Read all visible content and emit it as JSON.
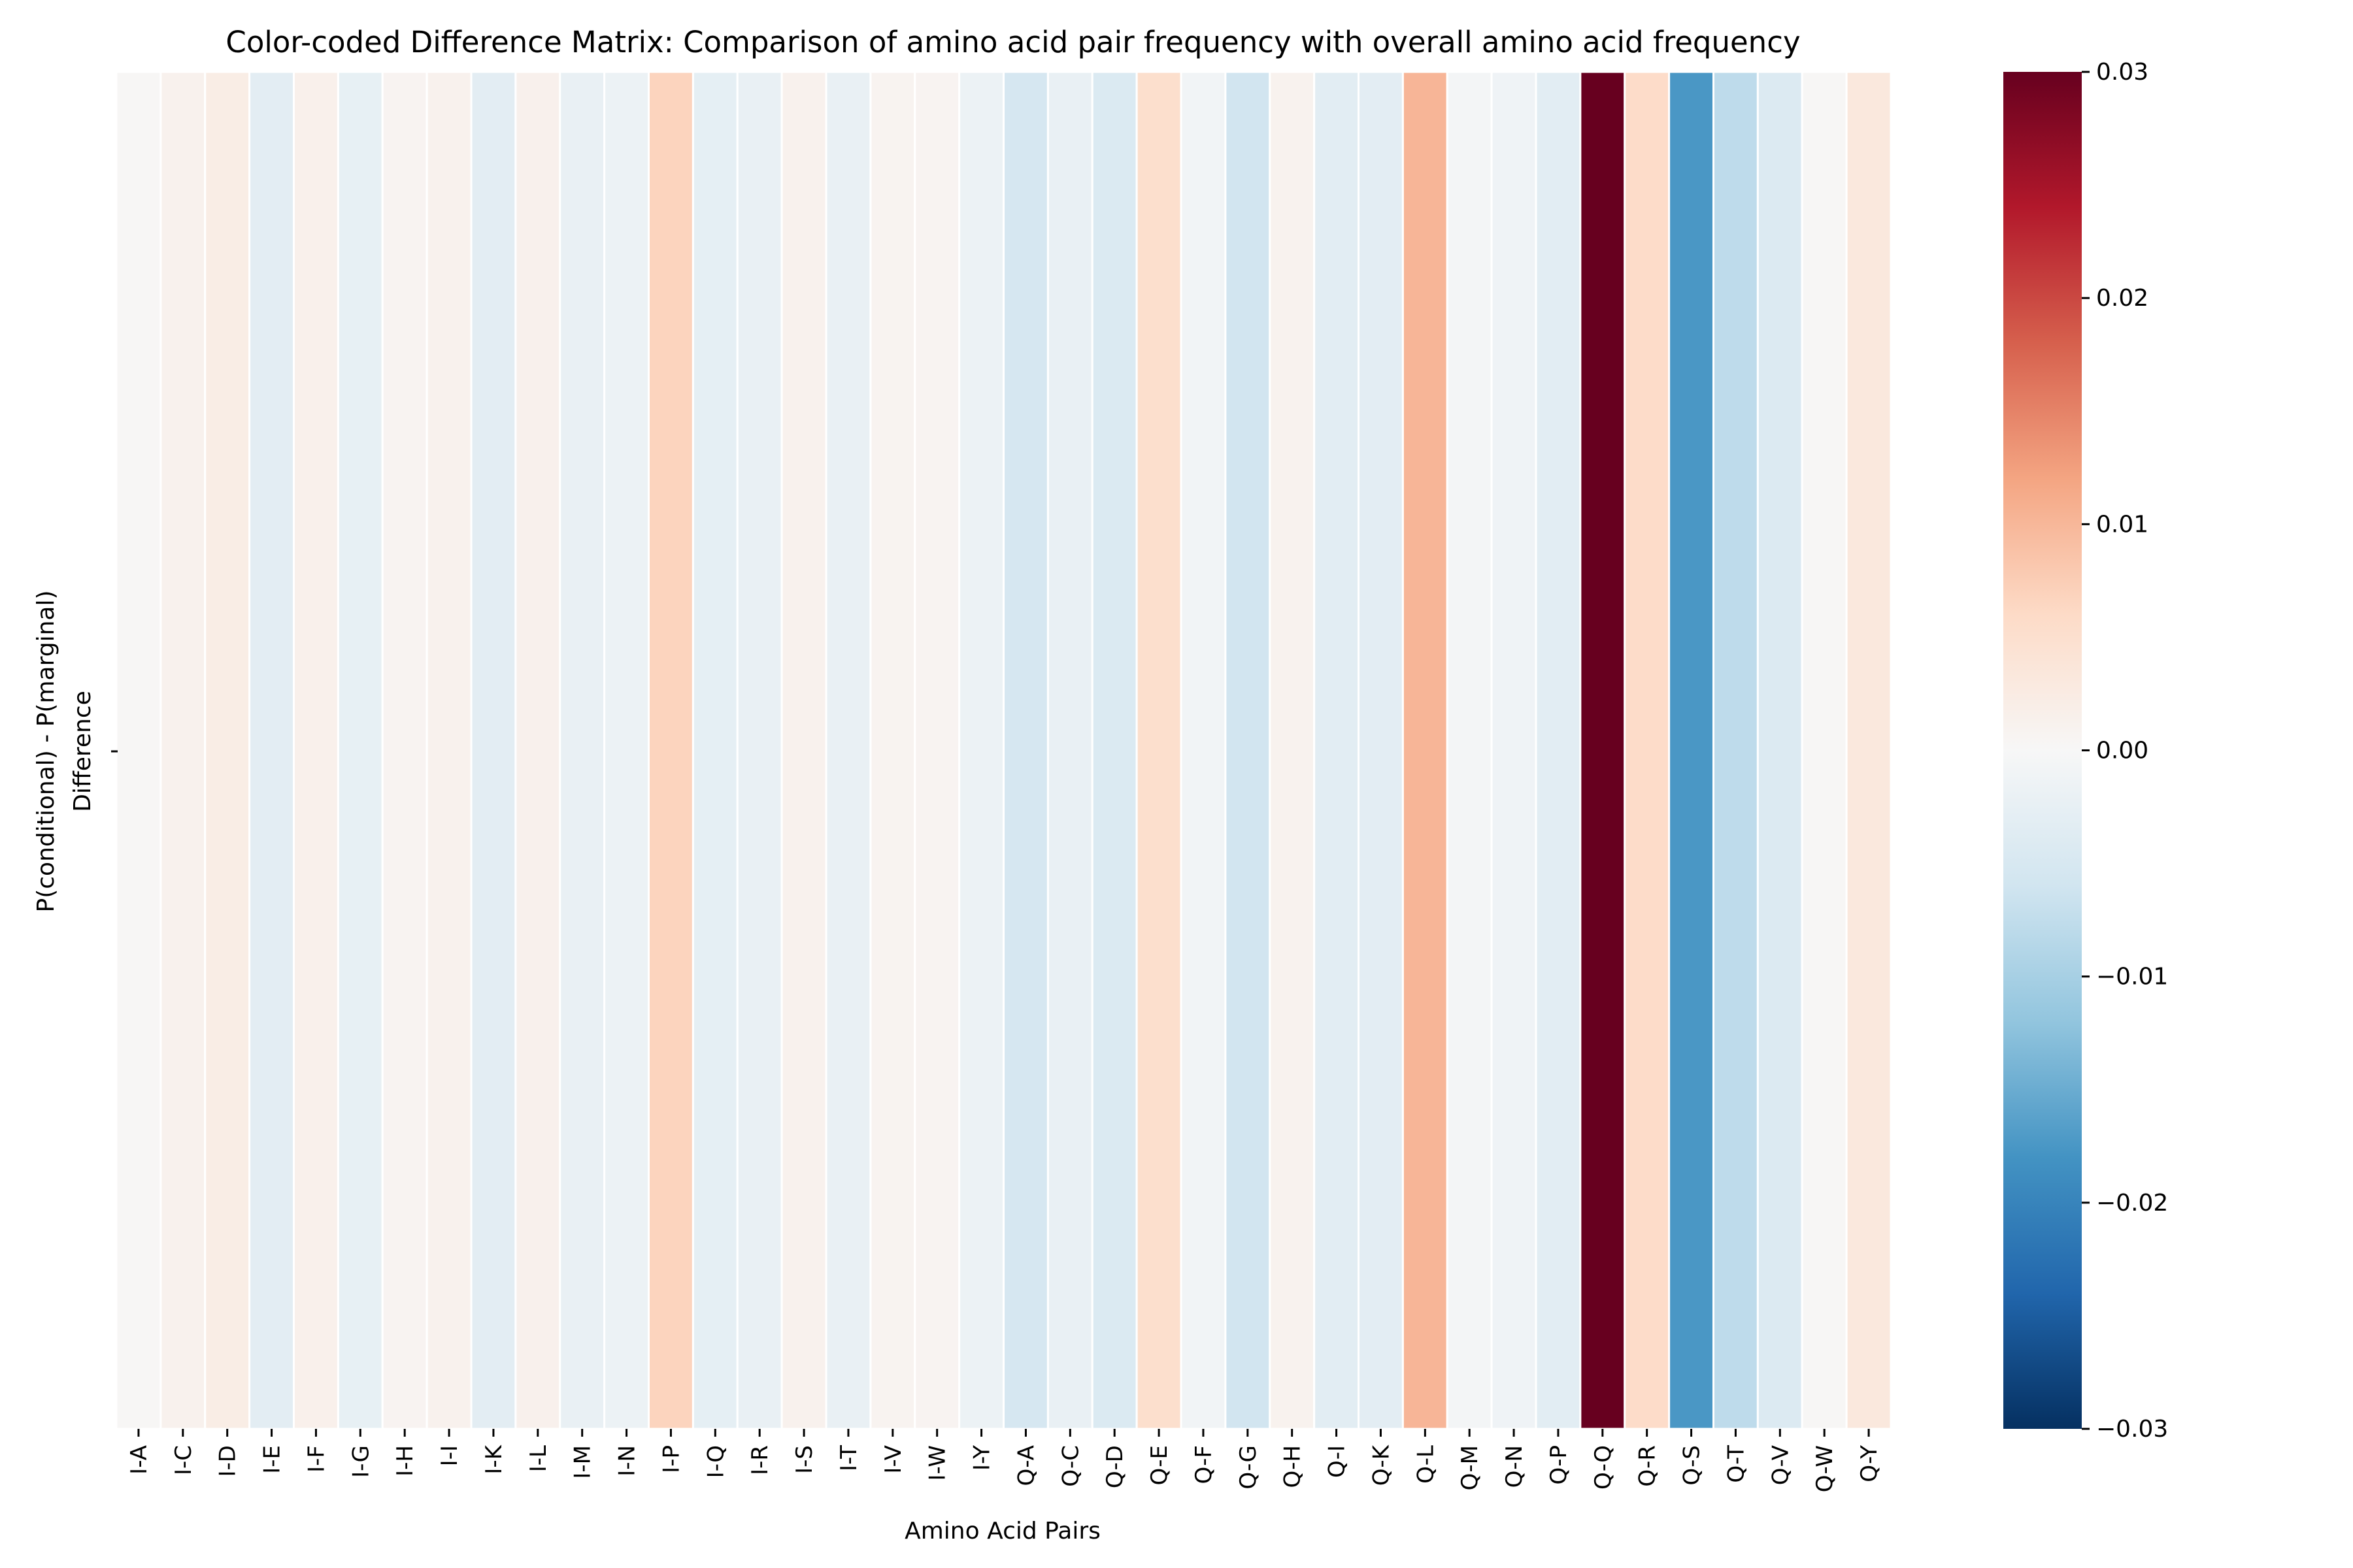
{
  "chart_data": {
    "type": "heatmap",
    "title": "Color-coded Difference Matrix: Comparison of amino acid pair frequency with overall amino acid frequency",
    "xlabel": "Amino Acid Pairs",
    "ylabel_lines": [
      "P(conditional) - P(marginal)",
      "Difference"
    ],
    "rows": [
      ""
    ],
    "categories": [
      "I-A",
      "I-C",
      "I-D",
      "I-E",
      "I-F",
      "I-G",
      "I-H",
      "I-I",
      "I-K",
      "I-L",
      "I-M",
      "I-N",
      "I-P",
      "I-Q",
      "I-R",
      "I-S",
      "I-T",
      "I-V",
      "I-W",
      "I-Y",
      "Q-A",
      "Q-C",
      "Q-D",
      "Q-E",
      "Q-F",
      "Q-G",
      "Q-H",
      "Q-I",
      "Q-K",
      "Q-L",
      "Q-M",
      "Q-N",
      "Q-P",
      "Q-Q",
      "Q-R",
      "Q-S",
      "Q-T",
      "Q-V",
      "Q-W",
      "Q-Y"
    ],
    "values": [
      0.0003,
      0.0013,
      0.0022,
      -0.0032,
      0.0015,
      -0.0025,
      0.0008,
      0.0013,
      -0.0032,
      0.0014,
      -0.0022,
      -0.0017,
      0.0068,
      -0.0028,
      -0.0022,
      0.0012,
      -0.0022,
      0.0009,
      0.0008,
      -0.0017,
      -0.0052,
      -0.0022,
      -0.0045,
      0.0052,
      -0.0009,
      -0.0059,
      0.0011,
      -0.0033,
      -0.0032,
      0.0102,
      -0.0007,
      -0.0012,
      -0.0033,
      0.0312,
      0.0058,
      -0.0175,
      -0.0078,
      -0.0042,
      0.0003,
      0.0033
    ],
    "colorbar": {
      "vmin": -0.03,
      "vmax": 0.03,
      "ticks": [
        "0.03",
        "0.02",
        "0.01",
        "0.00",
        "−0.01",
        "−0.02",
        "−0.03"
      ],
      "colormap": "RdBu_r",
      "colors": [
        "#053061",
        "#2166ac",
        "#4393c3",
        "#92c5de",
        "#d1e5f0",
        "#f7f7f7",
        "#fddbc7",
        "#f4a582",
        "#d6604d",
        "#b2182b",
        "#67001f"
      ]
    }
  }
}
